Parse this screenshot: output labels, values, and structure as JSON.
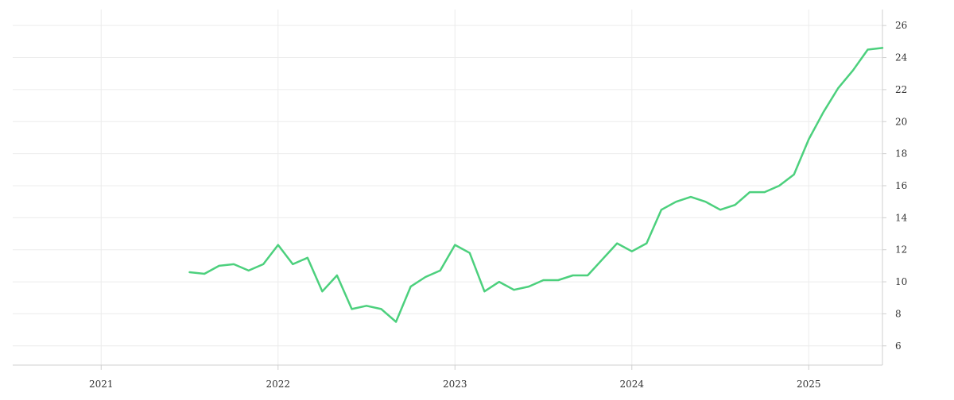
{
  "chart_data": {
    "type": "line",
    "title": "",
    "xlabel": "",
    "ylabel": "",
    "x_ticks": [
      "2021",
      "2022",
      "2023",
      "2024",
      "2025"
    ],
    "y_ticks": [
      6,
      8,
      10,
      12,
      14,
      16,
      18,
      20,
      22,
      24,
      26
    ],
    "xlim": [
      "2020-07",
      "2025-06"
    ],
    "ylim": [
      4.8,
      27
    ],
    "y_axis_side": "right",
    "grid": true,
    "legend": "none",
    "colors": {
      "line": "#4cd07d",
      "grid": "#ececec",
      "axis": "#cfcfcf",
      "tick_text": "#333333"
    },
    "series": [
      {
        "x": [
          "2021-07",
          "2021-08",
          "2021-09",
          "2021-10",
          "2021-11",
          "2021-12",
          "2022-01",
          "2022-02",
          "2022-03",
          "2022-04",
          "2022-05",
          "2022-06",
          "2022-07",
          "2022-08",
          "2022-09",
          "2022-10",
          "2022-11",
          "2022-12",
          "2023-01",
          "2023-02",
          "2023-03",
          "2023-04",
          "2023-05",
          "2023-06",
          "2023-07",
          "2023-08",
          "2023-09",
          "2023-10",
          "2023-11",
          "2023-12",
          "2024-01",
          "2024-02",
          "2024-03",
          "2024-04",
          "2024-05",
          "2024-06",
          "2024-07",
          "2024-08",
          "2024-09",
          "2024-10",
          "2024-11",
          "2024-12",
          "2025-01",
          "2025-02",
          "2025-03",
          "2025-04",
          "2025-05",
          "2025-06"
        ],
        "values": [
          10.6,
          10.5,
          11.0,
          11.1,
          10.7,
          11.1,
          12.3,
          11.1,
          11.5,
          9.4,
          10.4,
          8.3,
          8.5,
          8.3,
          7.5,
          9.7,
          10.3,
          10.7,
          12.3,
          11.8,
          9.4,
          10.0,
          9.5,
          9.7,
          10.1,
          10.1,
          10.4,
          10.4,
          11.4,
          12.4,
          11.9,
          12.4,
          14.5,
          15.0,
          15.3,
          15.0,
          14.5,
          14.8,
          15.6,
          15.6,
          16.0,
          16.7,
          18.9,
          20.6,
          22.1,
          23.2,
          24.5,
          24.6
        ]
      }
    ]
  }
}
